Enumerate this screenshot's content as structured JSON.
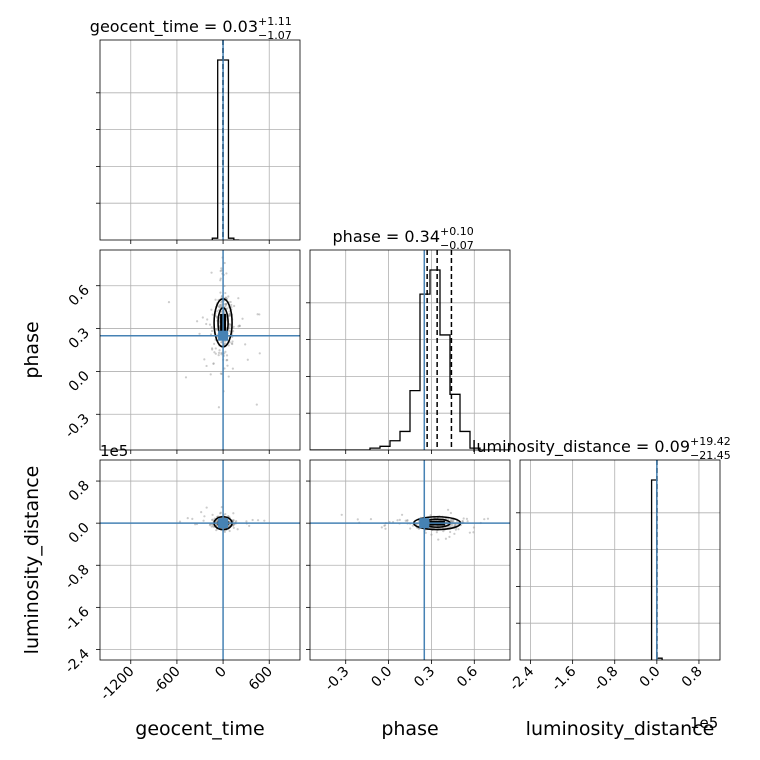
{
  "chart_data": {
    "type": "corner",
    "parameters": [
      "geocent_time",
      "phase",
      "luminosity_distance"
    ],
    "axis_labels": [
      "geocent_time",
      "phase",
      "luminosity_distance"
    ],
    "offset_text": {
      "luminosity_distance": "1e5"
    },
    "ranges": {
      "geocent_time": [
        -1600,
        1000
      ],
      "phase": [
        -0.55,
        0.85
      ],
      "luminosity_distance": [
        -2.6,
        1.2
      ]
    },
    "ticks": {
      "geocent_time": [
        "-1200",
        "-600",
        "0",
        "600"
      ],
      "phase": [
        "-0.3",
        "0.0",
        "0.3",
        "0.6"
      ],
      "luminosity_distance": [
        "-2.4",
        "-1.6",
        "-0.8",
        "0.0",
        "0.8"
      ]
    },
    "tick_values": {
      "geocent_time": [
        -1200,
        -600,
        0,
        600
      ],
      "phase": [
        -0.3,
        0.0,
        0.3,
        0.6
      ],
      "luminosity_distance": [
        -2.4,
        -1.6,
        -0.8,
        0.0,
        0.8
      ]
    },
    "titles": [
      {
        "param": "geocent_time",
        "text": "geocent_time = 0.03",
        "plus": "+1.11",
        "minus": "−1.07"
      },
      {
        "param": "phase",
        "text": "phase = 0.34",
        "plus": "+0.10",
        "minus": "−0.07"
      },
      {
        "param": "luminosity_distance",
        "text": "luminosity_distance = 0.09",
        "plus": "+19.42",
        "minus": "−21.45"
      }
    ],
    "truths": {
      "geocent_time": 0.0,
      "phase": 0.25,
      "luminosity_distance": 0.0
    },
    "quantiles": {
      "geocent_time": [
        -1.04,
        0.03,
        1.14
      ],
      "phase": [
        0.27,
        0.34,
        0.44
      ],
      "luminosity_distance": [
        -0.0002,
        9e-07,
        0.0002
      ]
    },
    "histograms": {
      "geocent_time": {
        "edges": [
          -140,
          -70,
          0,
          70,
          140,
          210
        ],
        "counts": [
          0.01,
          1.0,
          1.0,
          0.01,
          0.0
        ]
      },
      "phase": {
        "edges": [
          -0.55,
          -0.48,
          -0.41,
          -0.34,
          -0.27,
          -0.2,
          -0.13,
          -0.06,
          0.01,
          0.08,
          0.15,
          0.22,
          0.29,
          0.36,
          0.43,
          0.5,
          0.57,
          0.64,
          0.71,
          0.78,
          0.85
        ],
        "counts": [
          0,
          0,
          0,
          0,
          0,
          0,
          0.01,
          0.02,
          0.05,
          0.1,
          0.32,
          0.84,
          0.97,
          0.62,
          0.3,
          0.1,
          0.01,
          0,
          0,
          0
        ]
      },
      "luminosity_distance": {
        "edges": [
          -0.1,
          0.0,
          0.1
        ],
        "counts": [
          1.0,
          0.01
        ]
      }
    },
    "grid": true
  }
}
